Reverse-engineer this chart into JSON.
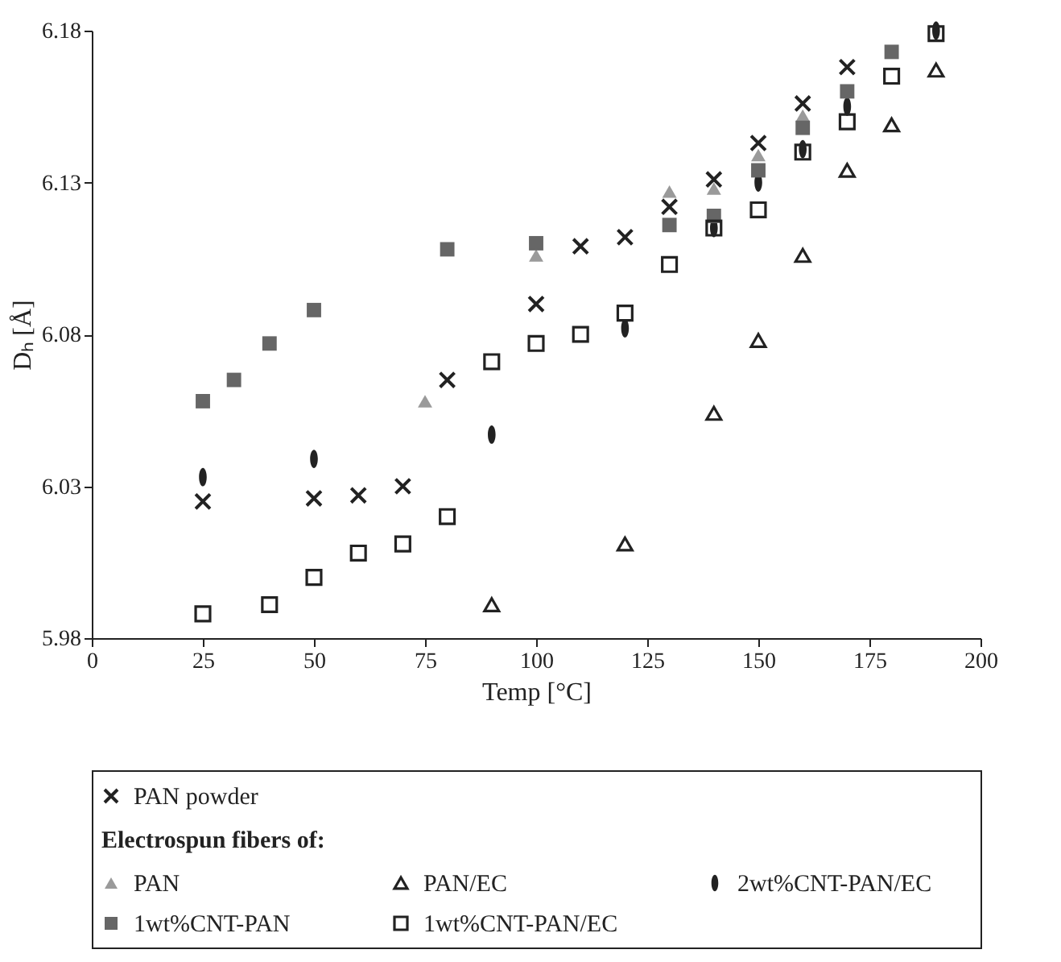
{
  "chart_data": {
    "type": "scatter",
    "xlabel": "Temp [°C]",
    "ylabel": "Dₕ [Å]",
    "legend_title": "Electrospun fibers of:",
    "xlim": [
      0,
      200
    ],
    "xticks": [
      0,
      25,
      50,
      75,
      100,
      125,
      150,
      175,
      200
    ],
    "ylim": [
      5.98,
      6.18
    ],
    "yticks": [
      5.98,
      6.03,
      6.08,
      6.13,
      6.18
    ],
    "grid": false,
    "legend": "bottom",
    "series": [
      {
        "name": "PAN powder",
        "color": "#222222",
        "marker": "cross",
        "x": [
          25,
          50,
          60,
          70,
          80,
          100,
          110,
          120,
          130,
          140,
          150,
          160,
          170
        ],
        "values": [
          6.025,
          6.026,
          6.027,
          6.03,
          6.065,
          6.09,
          6.109,
          6.112,
          6.122,
          6.131,
          6.143,
          6.156,
          6.168
        ]
      },
      {
        "name": "PAN",
        "color": "#9a9a9a",
        "marker": "triangle",
        "x": [
          75,
          100,
          130,
          140,
          150,
          160
        ],
        "values": [
          6.058,
          6.106,
          6.127,
          6.128,
          6.139,
          6.152
        ]
      },
      {
        "name": "PAN/EC",
        "color": "#222222",
        "marker": "triangle",
        "x": [
          90,
          120,
          140,
          150,
          160,
          170,
          180,
          190
        ],
        "values": [
          5.991,
          6.011,
          6.054,
          6.078,
          6.106,
          6.134,
          6.149,
          6.167
        ]
      },
      {
        "name": "2wt%CNT-PAN/EC",
        "color": "#222222",
        "marker": "circle",
        "x": [
          25,
          50,
          90,
          120,
          140,
          150,
          160,
          170,
          190
        ],
        "values": [
          6.033,
          6.039,
          6.047,
          6.082,
          6.115,
          6.13,
          6.141,
          6.155,
          6.18
        ]
      },
      {
        "name": "1wt%CNT-PAN",
        "color": "#666666",
        "marker": "square",
        "x": [
          25,
          32,
          40,
          50,
          80,
          100,
          130,
          140,
          150,
          160,
          170,
          180
        ],
        "values": [
          6.058,
          6.065,
          6.077,
          6.088,
          6.108,
          6.11,
          6.116,
          6.119,
          6.134,
          6.148,
          6.16,
          6.173
        ]
      },
      {
        "name": "1wt%CNT-PAN/EC",
        "color": "#222222",
        "marker": "square",
        "x": [
          25,
          40,
          50,
          60,
          70,
          80,
          90,
          100,
          110,
          120,
          130,
          140,
          150,
          160,
          170,
          180,
          190
        ],
        "values": [
          5.988,
          5.991,
          6.0,
          6.008,
          6.011,
          6.02,
          6.071,
          6.077,
          6.08,
          6.087,
          6.103,
          6.115,
          6.121,
          6.14,
          6.15,
          6.165,
          6.179
        ]
      }
    ]
  }
}
